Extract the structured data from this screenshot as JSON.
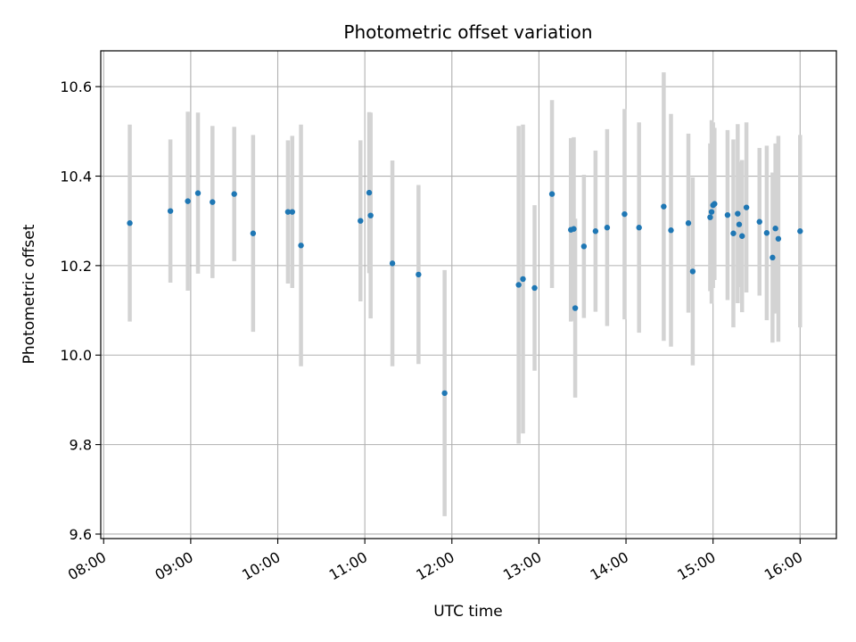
{
  "chart_data": {
    "type": "scatter",
    "title": "Photometric offset variation",
    "xlabel": "UTC time",
    "ylabel": "Photometric offset",
    "x_ticks": [
      "08:00",
      "09:00",
      "10:00",
      "11:00",
      "12:00",
      "13:00",
      "14:00",
      "15:00",
      "16:00"
    ],
    "y_ticks": [
      "9.6",
      "9.8",
      "10.0",
      "10.2",
      "10.4",
      "10.6"
    ],
    "xlim": [
      "07:58",
      "16:25"
    ],
    "ylim": [
      9.59,
      10.68
    ],
    "grid": true,
    "marker_color": "#1f77b4",
    "errorbar_color": "#d3d3d3",
    "series": [
      {
        "x": [
          "08:18",
          "08:46",
          "08:58",
          "09:05",
          "09:15",
          "09:30",
          "09:43",
          "10:07",
          "10:10",
          "10:16",
          "10:57",
          "11:03",
          "11:04",
          "11:19",
          "11:37",
          "11:55",
          "12:46",
          "12:49",
          "12:57",
          "13:09",
          "13:22",
          "13:24",
          "13:25",
          "13:31",
          "13:39",
          "13:47",
          "13:59",
          "14:09",
          "14:26",
          "14:31",
          "14:43",
          "14:46",
          "14:58",
          "14:59",
          "15:00",
          "15:01",
          "15:10",
          "15:14",
          "15:17",
          "15:18",
          "15:20",
          "15:23",
          "15:32",
          "15:37",
          "15:41",
          "15:43",
          "15:45",
          "16:00"
        ],
        "y": [
          10.295,
          10.322,
          10.344,
          10.362,
          10.342,
          10.36,
          10.272,
          10.32,
          10.32,
          10.245,
          10.3,
          10.363,
          10.312,
          10.205,
          10.18,
          9.915,
          10.157,
          10.17,
          10.15,
          10.36,
          10.28,
          10.282,
          10.105,
          10.243,
          10.277,
          10.285,
          10.315,
          10.285,
          10.332,
          10.279,
          10.295,
          10.187,
          10.308,
          10.32,
          10.335,
          10.338,
          10.313,
          10.272,
          10.316,
          10.292,
          10.266,
          10.33,
          10.298,
          10.273,
          10.218,
          10.283,
          10.26,
          10.277
        ],
        "err": [
          0.22,
          0.16,
          0.2,
          0.18,
          0.17,
          0.15,
          0.22,
          0.16,
          0.17,
          0.27,
          0.18,
          0.18,
          0.23,
          0.23,
          0.2,
          0.275,
          0.355,
          0.345,
          0.185,
          0.21,
          0.205,
          0.205,
          0.2,
          0.16,
          0.18,
          0.22,
          0.235,
          0.235,
          0.3,
          0.26,
          0.2,
          0.21,
          0.165,
          0.205,
          0.185,
          0.17,
          0.19,
          0.21,
          0.2,
          0.14,
          0.17,
          0.19,
          0.165,
          0.195,
          0.19,
          0.19,
          0.23,
          0.215
        ]
      }
    ]
  }
}
